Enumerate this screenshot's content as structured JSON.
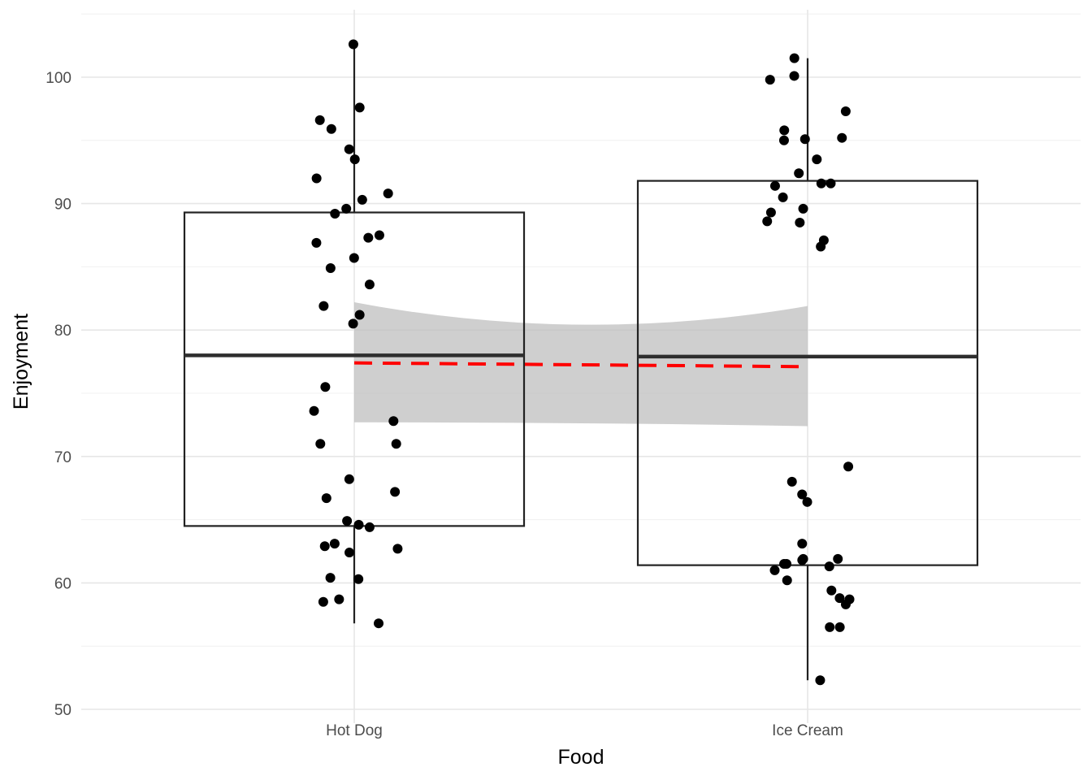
{
  "chart_data": {
    "type": "box",
    "xlabel": "Food",
    "ylabel": "Enjoyment",
    "categories": [
      "Hot Dog",
      "Ice Cream"
    ],
    "ylim": [
      48.5,
      105
    ],
    "yticks": [
      "50",
      "60",
      "70",
      "80",
      "90",
      "100"
    ],
    "grid": true,
    "boxes": [
      {
        "category": "Hot Dog",
        "whisker_low": 56.8,
        "q1": 64.5,
        "median": 78.0,
        "q3": 89.3,
        "whisker_high": 102.6
      },
      {
        "category": "Ice Cream",
        "whisker_low": 52.3,
        "q1": 61.4,
        "median": 77.9,
        "q3": 91.8,
        "whisker_high": 101.5
      }
    ],
    "trend_line": {
      "style": "dashed",
      "color": "#ff0000",
      "x": [
        "Hot Dog",
        "Ice Cream"
      ],
      "y": [
        77.4,
        77.1
      ],
      "ci_lower": [
        72.7,
        72.4
      ],
      "ci_upper": [
        82.2,
        81.9
      ],
      "ci_min_width_y": [
        73.9,
        80.7
      ]
    },
    "points": [
      {
        "category": "Hot Dog",
        "values": [
          102.6,
          97.6,
          96.6,
          95.9,
          94.3,
          93.5,
          92.0,
          90.8,
          90.3,
          89.6,
          89.2,
          87.5,
          87.3,
          86.9,
          85.7,
          84.9,
          83.6,
          81.9,
          81.2,
          80.5,
          75.5,
          73.6,
          72.8,
          71.0,
          71.0,
          68.2,
          67.2,
          66.7,
          64.9,
          64.6,
          64.4,
          63.1,
          62.9,
          62.7,
          62.4,
          60.4,
          60.3,
          58.7,
          58.5,
          56.8
        ]
      },
      {
        "category": "Ice Cream",
        "values": [
          101.5,
          100.1,
          99.8,
          97.3,
          95.8,
          95.2,
          95.1,
          95.0,
          93.5,
          92.4,
          91.6,
          91.6,
          91.4,
          90.5,
          89.6,
          89.3,
          88.6,
          88.5,
          87.1,
          86.6,
          69.2,
          68.0,
          67.0,
          66.4,
          63.1,
          61.9,
          61.9,
          61.8,
          61.5,
          61.5,
          61.3,
          61.0,
          60.2,
          59.4,
          58.8,
          58.7,
          58.3,
          56.5,
          56.5,
          52.3
        ]
      }
    ]
  }
}
